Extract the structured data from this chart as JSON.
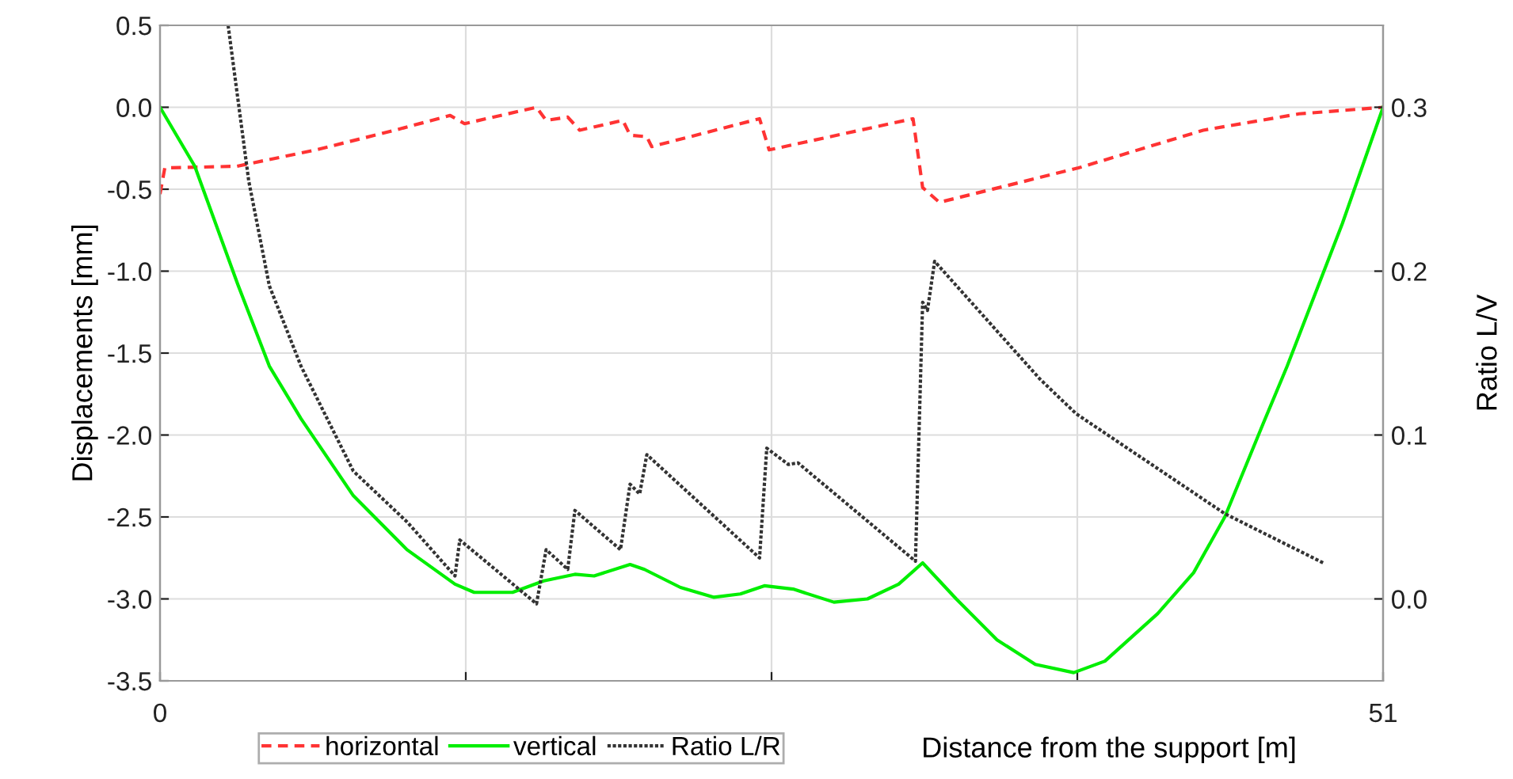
{
  "chart_data": {
    "type": "line",
    "xlabel": "Distance from the support [m]",
    "ylabel": "Displacements [mm]",
    "y2label": "Ratio L/V",
    "xlim": [
      0,
      51
    ],
    "xticks": [
      0,
      {
        "value": 12.75,
        "label": null
      },
      {
        "value": 25.5,
        "label": null
      },
      {
        "value": 38.25,
        "label": null
      },
      51
    ],
    "ylim": [
      -3.5,
      0.5
    ],
    "yticks": [
      {
        "value": -3.5,
        "label": "-3.5"
      },
      {
        "value": -3,
        "label": "-3.0"
      },
      {
        "value": -2.5,
        "label": "-2.5"
      },
      {
        "value": -2,
        "label": "-2.0"
      },
      {
        "value": -1.5,
        "label": "-1.5"
      },
      {
        "value": -1,
        "label": "-1.0"
      },
      {
        "value": -0.5,
        "label": "-0.5"
      },
      {
        "value": 0,
        "label": "0.0"
      },
      {
        "value": 0.5,
        "label": "0.5"
      }
    ],
    "y2lim": [
      -0.05,
      0.35
    ],
    "y2ticks": [
      {
        "value": 0,
        "label": "0.0"
      },
      {
        "value": 0.1,
        "label": "0.1"
      },
      {
        "value": 0.2,
        "label": "0.2"
      },
      {
        "value": 0.3,
        "label": "0.3"
      }
    ],
    "grid": true,
    "legend": "bottom left",
    "marker": "none",
    "series": [
      {
        "name": "horizontal",
        "color": "#ff3333",
        "line_style": "dashed",
        "x": [
          0,
          0.2,
          3.2,
          6.5,
          9.8,
          12.1,
          12.7,
          15.7,
          16.1,
          17.0,
          17.5,
          19.3,
          19.6,
          20.3,
          20.5,
          25.0,
          25.4,
          31.4,
          31.8,
          32.5,
          38.3,
          43.5,
          47.5,
          51
        ],
        "values": [
          -0.53,
          -0.37,
          -0.36,
          -0.26,
          -0.14,
          -0.05,
          -0.1,
          0.0,
          -0.08,
          -0.06,
          -0.14,
          -0.08,
          -0.17,
          -0.18,
          -0.24,
          -0.07,
          -0.26,
          -0.07,
          -0.49,
          -0.58,
          -0.37,
          -0.14,
          -0.04,
          0
        ]
      },
      {
        "name": "vertical",
        "color": "#00ee00",
        "line_style": "solid",
        "x": [
          0,
          1.45,
          3.24,
          4.56,
          5.88,
          8.06,
          10.3,
          12.3,
          13.1,
          14.7,
          16.0,
          17.3,
          18.1,
          19.6,
          20.2,
          21.7,
          23.1,
          24.2,
          25.2,
          26.4,
          28.1,
          29.5,
          30.8,
          31.8,
          33.2,
          34.9,
          36.5,
          38.1,
          39.4,
          41.6,
          43.1,
          44.4,
          46.0,
          47.0,
          49.3,
          51
        ],
        "values": [
          0,
          -0.36,
          -1.08,
          -1.58,
          -1.9,
          -2.37,
          -2.7,
          -2.91,
          -2.96,
          -2.96,
          -2.89,
          -2.85,
          -2.86,
          -2.79,
          -2.82,
          -2.93,
          -2.99,
          -2.97,
          -2.92,
          -2.94,
          -3.02,
          -3.0,
          -2.91,
          -2.78,
          -3.0,
          -3.25,
          -3.4,
          -3.45,
          -3.38,
          -3.09,
          -2.84,
          -2.5,
          -1.93,
          -1.58,
          -0.71,
          0
        ]
      },
      {
        "name": "Ratio L/R",
        "color": "#333333",
        "line_style": "dotted",
        "axis": "y2",
        "x": [
          2.84,
          3.7,
          4.56,
          5.88,
          8.06,
          10.3,
          12.3,
          12.5,
          15.7,
          16.1,
          17.0,
          17.3,
          19.2,
          19.6,
          20.0,
          20.3,
          25.0,
          25.3,
          26.2,
          26.6,
          31.5,
          31.8,
          32.0,
          32.3,
          36.7,
          38.2,
          44.4,
          48.5
        ],
        "values": [
          0.35,
          0.255,
          0.191,
          0.142,
          0.078,
          0.047,
          0.014,
          0.036,
          -0.003,
          0.03,
          0.018,
          0.054,
          0.03,
          0.07,
          0.064,
          0.088,
          0.025,
          0.092,
          0.082,
          0.083,
          0.023,
          0.181,
          0.176,
          0.206,
          0.134,
          0.113,
          0.052,
          0.022
        ]
      }
    ]
  }
}
